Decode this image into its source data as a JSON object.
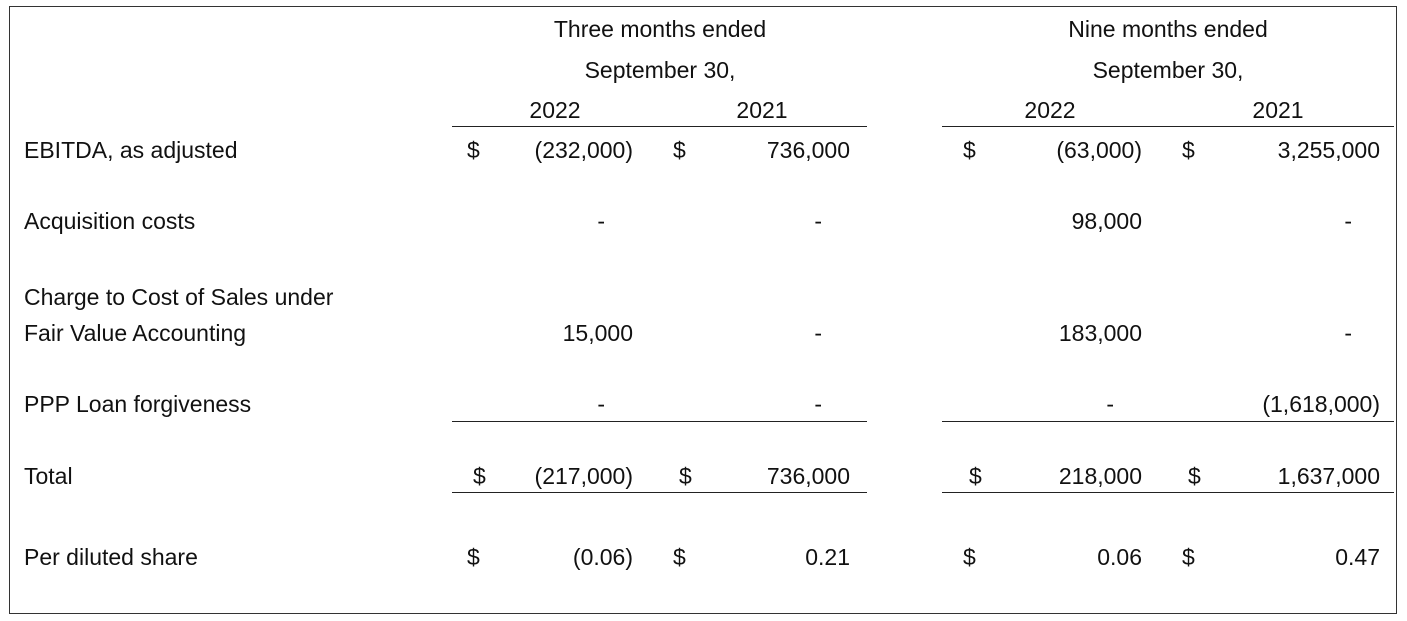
{
  "table": {
    "groups": [
      {
        "lines": [
          "Three months ended",
          "September 30,"
        ],
        "years": [
          "2022",
          "2021"
        ]
      },
      {
        "lines": [
          "Nine months ended",
          "September 30,"
        ],
        "years": [
          "2022",
          "2021"
        ]
      }
    ],
    "rows": [
      {
        "label": [
          "EBITDA, as adjusted"
        ],
        "cells": [
          {
            "currency": "$",
            "value": "(232,000)"
          },
          {
            "currency": "$",
            "value": "736,000"
          },
          {
            "currency": "$",
            "value": "(63,000)"
          },
          {
            "currency": "$",
            "value": "3,255,000"
          }
        ]
      },
      {
        "label": [
          "Acquisition costs"
        ],
        "cells": [
          {
            "value": "-"
          },
          {
            "value": "-"
          },
          {
            "value": "98,000"
          },
          {
            "value": "-"
          }
        ]
      },
      {
        "label": [
          "Charge to Cost of Sales under",
          "Fair Value Accounting"
        ],
        "cells": [
          {
            "value": "15,000"
          },
          {
            "value": "-"
          },
          {
            "value": "183,000"
          },
          {
            "value": "-"
          }
        ]
      },
      {
        "label": [
          "PPP Loan forgiveness"
        ],
        "cells": [
          {
            "value": "-"
          },
          {
            "value": "-"
          },
          {
            "value": "-"
          },
          {
            "value": "(1,618,000)"
          }
        ]
      },
      {
        "label": [
          "Total"
        ],
        "cells": [
          {
            "currency": "$",
            "value": "(217,000)"
          },
          {
            "currency": "$",
            "value": "736,000"
          },
          {
            "currency": "$",
            "value": "218,000"
          },
          {
            "currency": "$",
            "value": "1,637,000"
          }
        ]
      },
      {
        "label": [
          "Per diluted share"
        ],
        "cells": [
          {
            "currency": "$",
            "value": "(0.06)"
          },
          {
            "currency": "$",
            "value": "0.21"
          },
          {
            "currency": "$",
            "value": "0.06"
          },
          {
            "currency": "$",
            "value": "0.47"
          }
        ]
      }
    ]
  }
}
